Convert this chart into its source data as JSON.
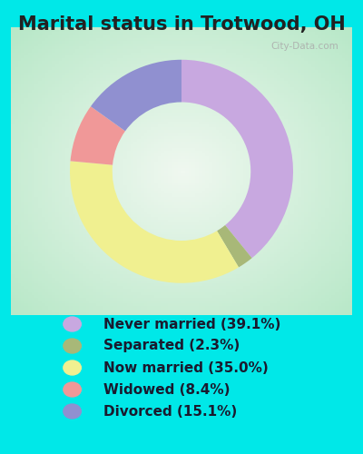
{
  "title": "Marital status in Trotwood, OH",
  "slices": [
    39.1,
    2.3,
    35.0,
    8.4,
    15.1
  ],
  "labels": [
    "Never married (39.1%)",
    "Separated (2.3%)",
    "Now married (35.0%)",
    "Widowed (8.4%)",
    "Divorced (15.1%)"
  ],
  "colors": [
    "#c8a8e0",
    "#a8b878",
    "#f0f090",
    "#f09898",
    "#9090d0"
  ],
  "legend_colors": [
    "#c8a8e0",
    "#a8b878",
    "#f0f090",
    "#f09898",
    "#9090d0"
  ],
  "background_outer": "#00e8e8",
  "background_inner_edge": "#b8e8c8",
  "background_inner_center": "#f0f8f0",
  "donut_width": 0.38,
  "start_angle": 90,
  "title_fontsize": 15,
  "title_color": "#222222",
  "legend_fontsize": 11,
  "legend_color": "#1a1a2e",
  "watermark": "City-Data.com"
}
